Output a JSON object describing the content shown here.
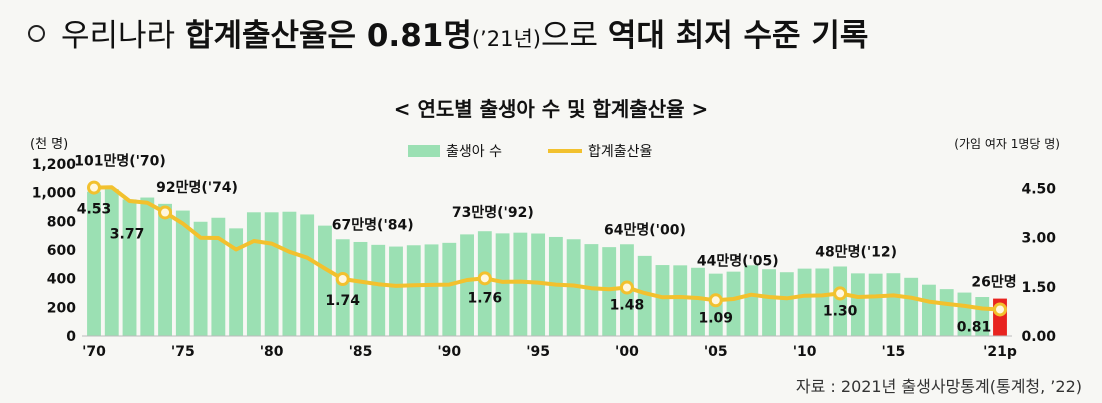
{
  "headline": {
    "part1": "우리나라 ",
    "bold1": "합계출산율은 0.81명",
    "small": "(’21년)",
    "part2": "으로 ",
    "bold2": "역대 최저 수준 기록"
  },
  "source_note": "자료 : 2021년 출생사망통계(통계청, ’22)",
  "colors": {
    "bar": "#9be0b3",
    "highlight_bar": "#e8231f",
    "line": "#f2c12e",
    "marker_fill": "#fff7df"
  },
  "chart_data": {
    "type": "bar+line",
    "title": "< 연도별 출생아 수 및 합계출산율 >",
    "left_unit": "(천 명)",
    "right_unit": "(가임 여자 1명당 명)",
    "x": [
      "'70",
      "'71",
      "'72",
      "'73",
      "'74",
      "'75",
      "'76",
      "'77",
      "'78",
      "'79",
      "'80",
      "'81",
      "'82",
      "'83",
      "'84",
      "'85",
      "'86",
      "'87",
      "'88",
      "'89",
      "'90",
      "'91",
      "'92",
      "'93",
      "'94",
      "'95",
      "'96",
      "'97",
      "'98",
      "'99",
      "'00",
      "'01",
      "'02",
      "'03",
      "'04",
      "'05",
      "'06",
      "'07",
      "'08",
      "'09",
      "'10",
      "'11",
      "'12",
      "'13",
      "'14",
      "'15",
      "'16",
      "'17",
      "'18",
      "'19",
      "'20",
      "'21p"
    ],
    "x_tick_labels": {
      "0": "'70",
      "5": "'75",
      "10": "'80",
      "15": "'85",
      "20": "'90",
      "25": "'95",
      "30": "'00",
      "35": "'05",
      "40": "'10",
      "45": "'15",
      "51": "'21p"
    },
    "left_axis": {
      "ticks": [
        "0",
        "200",
        "400",
        "600",
        "800",
        "1,000",
        "1,200"
      ],
      "ylim": [
        0,
        1200
      ]
    },
    "right_axis": {
      "ticks": [
        "0.00",
        "1.50",
        "3.00",
        "4.50"
      ],
      "ylim": [
        0,
        5.25
      ]
    },
    "series": [
      {
        "name": "출생아 수",
        "kind": "bar",
        "axis": "left",
        "values": [
          1007,
          1025,
          953,
          966,
          922,
          875,
          797,
          825,
          751,
          863,
          863,
          867,
          848,
          770,
          675,
          656,
          636,
          624,
          633,
          639,
          650,
          709,
          731,
          716,
          721,
          715,
          691,
          675,
          641,
          620,
          640,
          559,
          495,
          493,
          476,
          435,
          449,
          493,
          466,
          445,
          470,
          471,
          485,
          437,
          435,
          438,
          406,
          358,
          327,
          303,
          272,
          261
        ]
      },
      {
        "name": "합계출산율",
        "kind": "line",
        "axis": "right",
        "values": [
          4.53,
          4.54,
          4.12,
          4.07,
          3.77,
          3.43,
          3.0,
          2.99,
          2.64,
          2.9,
          2.82,
          2.57,
          2.39,
          2.06,
          1.74,
          1.66,
          1.58,
          1.53,
          1.55,
          1.56,
          1.57,
          1.71,
          1.76,
          1.65,
          1.66,
          1.63,
          1.57,
          1.54,
          1.46,
          1.43,
          1.48,
          1.31,
          1.18,
          1.19,
          1.16,
          1.09,
          1.13,
          1.26,
          1.19,
          1.15,
          1.23,
          1.24,
          1.3,
          1.19,
          1.21,
          1.24,
          1.17,
          1.05,
          0.98,
          0.92,
          0.84,
          0.81
        ]
      }
    ],
    "bar_annotations": [
      {
        "index": 0,
        "text": "101만명('70)"
      },
      {
        "index": 4,
        "text": "92만명('74)"
      },
      {
        "index": 14,
        "text": "67만명('84)"
      },
      {
        "index": 22,
        "text": "73만명('92)"
      },
      {
        "index": 30,
        "text": "64만명('00)"
      },
      {
        "index": 35,
        "text": "44만명('05)"
      },
      {
        "index": 42,
        "text": "48만명('12)"
      },
      {
        "index": 51,
        "text": "26만명"
      }
    ],
    "line_annotations": [
      {
        "index": 0,
        "text": "4.53"
      },
      {
        "index": 4,
        "text": "3.77"
      },
      {
        "index": 14,
        "text": "1.74"
      },
      {
        "index": 22,
        "text": "1.76"
      },
      {
        "index": 30,
        "text": "1.48"
      },
      {
        "index": 35,
        "text": "1.09"
      },
      {
        "index": 42,
        "text": "1.30"
      },
      {
        "index": 51,
        "text": "0.81"
      }
    ],
    "legend_position": "top-center",
    "highlight_index": 51
  }
}
